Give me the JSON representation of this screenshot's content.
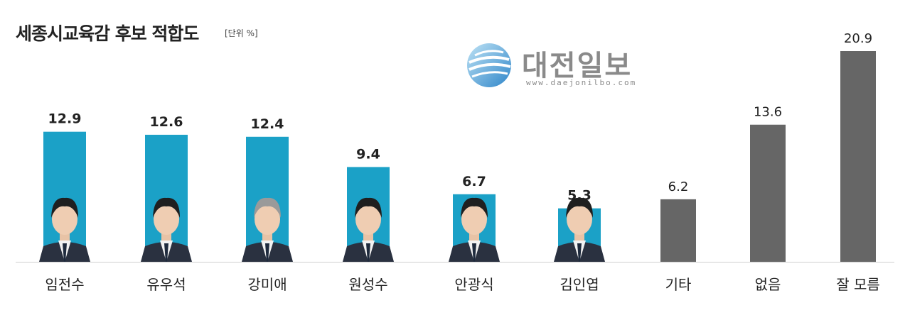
{
  "title": "세종시교육감 후보 적합도",
  "unit": "[단위 %]",
  "watermark": {
    "name": "대전일보",
    "url": "www.daejonilbo.com"
  },
  "colors": {
    "candidate": "#1ba1c7",
    "other": "#666666"
  },
  "chart_data": {
    "type": "bar",
    "title": "세종시교육감 후보 적합도",
    "unit": "[단위 %]",
    "categories": [
      "임전수",
      "유우석",
      "강미애",
      "원성수",
      "안광식",
      "김인엽",
      "기타",
      "없음",
      "잘 모름"
    ],
    "values": [
      12.9,
      12.6,
      12.4,
      9.4,
      6.7,
      5.3,
      6.2,
      13.6,
      20.9
    ],
    "groups": [
      "candidate",
      "candidate",
      "candidate",
      "candidate",
      "candidate",
      "candidate",
      "other",
      "other",
      "other"
    ],
    "ylim": [
      0,
      20.9
    ],
    "grid": false,
    "legend": "none"
  }
}
